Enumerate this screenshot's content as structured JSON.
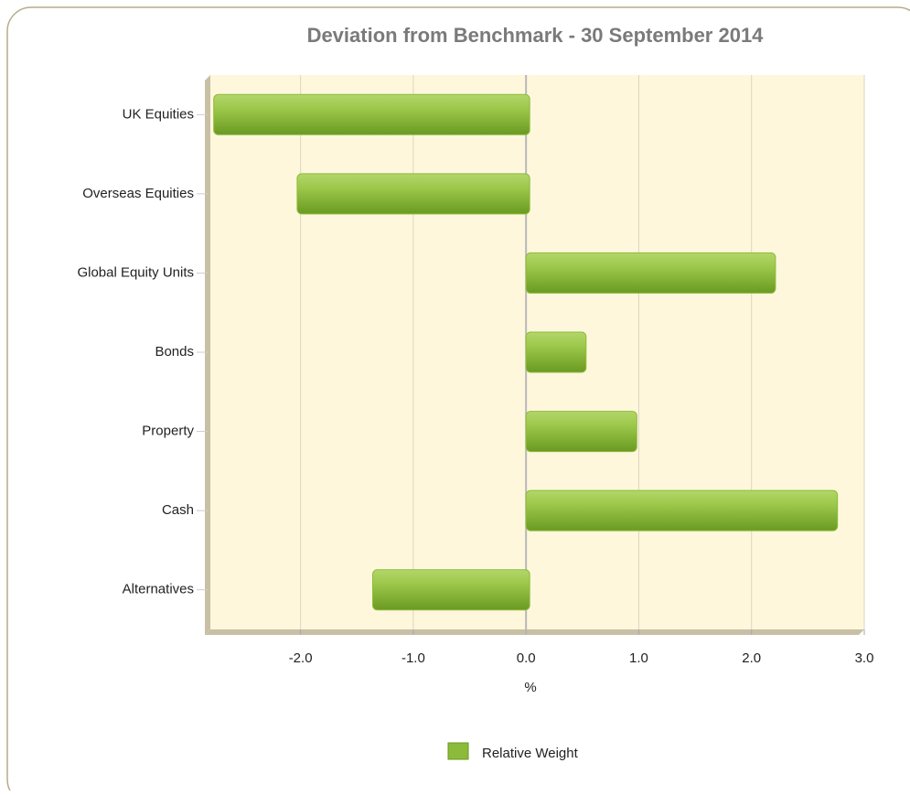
{
  "chart_data": {
    "type": "bar",
    "orientation": "horizontal",
    "title": "Deviation from Benchmark - 30 September 2014",
    "xlabel": "%",
    "categories": [
      "UK Equities",
      "Overseas Equities",
      "Global Equity Units",
      "Bonds",
      "Property",
      "Cash",
      "Alternatives"
    ],
    "series": [
      {
        "name": "Relative Weight",
        "color": "#8cbb3c",
        "values": [
          -2.77,
          -2.03,
          2.18,
          0.5,
          0.95,
          2.73,
          -1.36
        ]
      }
    ],
    "xlim": [
      -2.8,
      3.0
    ],
    "xticks": [
      {
        "value": -2,
        "label": "-2.0"
      },
      {
        "value": -1,
        "label": "-1.0"
      },
      {
        "value": 0,
        "label": "0.0"
      },
      {
        "value": 1,
        "label": "1.0"
      },
      {
        "value": 2,
        "label": "2.0"
      },
      {
        "value": 3,
        "label": "3.0"
      }
    ],
    "grid": true,
    "legend": "bottom"
  }
}
